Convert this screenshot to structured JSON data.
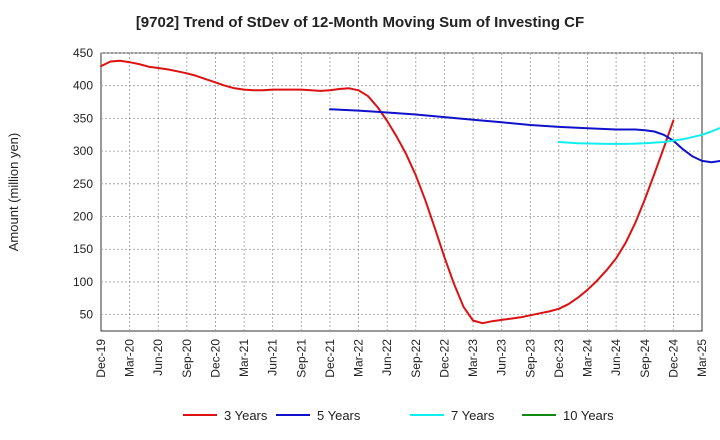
{
  "chart_data": {
    "type": "line",
    "title": "[9702]  Trend of StDev of 12-Month Moving Sum of Investing CF",
    "xlabel": "",
    "ylabel": "Amount (million yen)",
    "ylim": [
      25,
      450
    ],
    "yticks": [
      50,
      100,
      150,
      200,
      250,
      300,
      350,
      400,
      450
    ],
    "x_tick_labels": [
      "Dec-19",
      "Mar-20",
      "Jun-20",
      "Sep-20",
      "Dec-20",
      "Mar-21",
      "Jun-21",
      "Sep-21",
      "Dec-21",
      "Mar-22",
      "Jun-22",
      "Sep-22",
      "Dec-22",
      "Mar-23",
      "Jun-23",
      "Sep-23",
      "Dec-23",
      "Mar-24",
      "Jun-24",
      "Sep-24",
      "Dec-24",
      "Mar-25"
    ],
    "grid": true,
    "legend_position": "bottom",
    "series": [
      {
        "name": "3 Years",
        "color": "#dd1111",
        "points": [
          [
            0,
            430
          ],
          [
            1,
            437
          ],
          [
            2,
            438
          ],
          [
            3,
            436
          ],
          [
            4,
            433
          ],
          [
            5,
            429
          ],
          [
            6,
            427
          ],
          [
            7,
            425
          ],
          [
            8,
            422
          ],
          [
            9,
            419
          ],
          [
            10,
            415
          ],
          [
            11,
            410
          ],
          [
            12,
            405
          ],
          [
            13,
            400
          ],
          [
            14,
            396
          ],
          [
            15,
            394
          ],
          [
            16,
            393
          ],
          [
            17,
            393
          ],
          [
            18,
            394
          ],
          [
            19,
            394
          ],
          [
            20,
            394
          ],
          [
            21,
            394
          ],
          [
            22,
            393
          ],
          [
            23,
            392
          ],
          [
            24,
            393
          ],
          [
            25,
            395
          ],
          [
            26,
            396
          ],
          [
            27,
            393
          ],
          [
            28,
            384
          ],
          [
            29,
            367
          ],
          [
            30,
            346
          ],
          [
            31,
            322
          ],
          [
            32,
            295
          ],
          [
            33,
            263
          ],
          [
            34,
            225
          ],
          [
            35,
            182
          ],
          [
            36,
            138
          ],
          [
            37,
            97
          ],
          [
            38,
            62
          ],
          [
            39,
            41
          ],
          [
            40,
            37
          ],
          [
            41,
            40
          ],
          [
            42,
            42
          ],
          [
            43,
            44
          ],
          [
            44,
            46
          ],
          [
            45,
            49
          ],
          [
            46,
            52
          ],
          [
            47,
            55
          ],
          [
            48,
            59
          ],
          [
            49,
            66
          ],
          [
            50,
            76
          ],
          [
            51,
            88
          ],
          [
            52,
            102
          ],
          [
            53,
            118
          ],
          [
            54,
            136
          ],
          [
            55,
            160
          ],
          [
            56,
            190
          ],
          [
            57,
            226
          ],
          [
            58,
            265
          ],
          [
            59,
            305
          ],
          [
            60,
            347
          ]
        ]
      },
      {
        "name": "5 Years",
        "color": "#1111cc",
        "points": [
          [
            24,
            364
          ],
          [
            27,
            362
          ],
          [
            30,
            359
          ],
          [
            33,
            356
          ],
          [
            36,
            352
          ],
          [
            39,
            348
          ],
          [
            42,
            344
          ],
          [
            45,
            340
          ],
          [
            48,
            337
          ],
          [
            51,
            335
          ],
          [
            54,
            333
          ],
          [
            56,
            333
          ],
          [
            57,
            332
          ],
          [
            58,
            330
          ],
          [
            59,
            325
          ],
          [
            60,
            316
          ],
          [
            61,
            303
          ],
          [
            62,
            292
          ],
          [
            63,
            285
          ],
          [
            64,
            283
          ],
          [
            65,
            285
          ],
          [
            66,
            292
          ],
          [
            67,
            303
          ],
          [
            68,
            310
          ]
        ]
      },
      {
        "name": "7 Years",
        "color": "#11eeee",
        "points": [
          [
            48,
            314
          ],
          [
            50,
            312
          ],
          [
            53,
            311
          ],
          [
            55,
            311
          ],
          [
            57,
            312
          ],
          [
            59,
            314
          ],
          [
            61,
            318
          ],
          [
            63,
            325
          ],
          [
            64,
            330
          ],
          [
            65,
            336
          ],
          [
            66,
            344
          ],
          [
            67,
            352
          ],
          [
            68,
            364
          ]
        ]
      },
      {
        "name": "10 Years",
        "color": "#118811",
        "points": []
      }
    ]
  }
}
